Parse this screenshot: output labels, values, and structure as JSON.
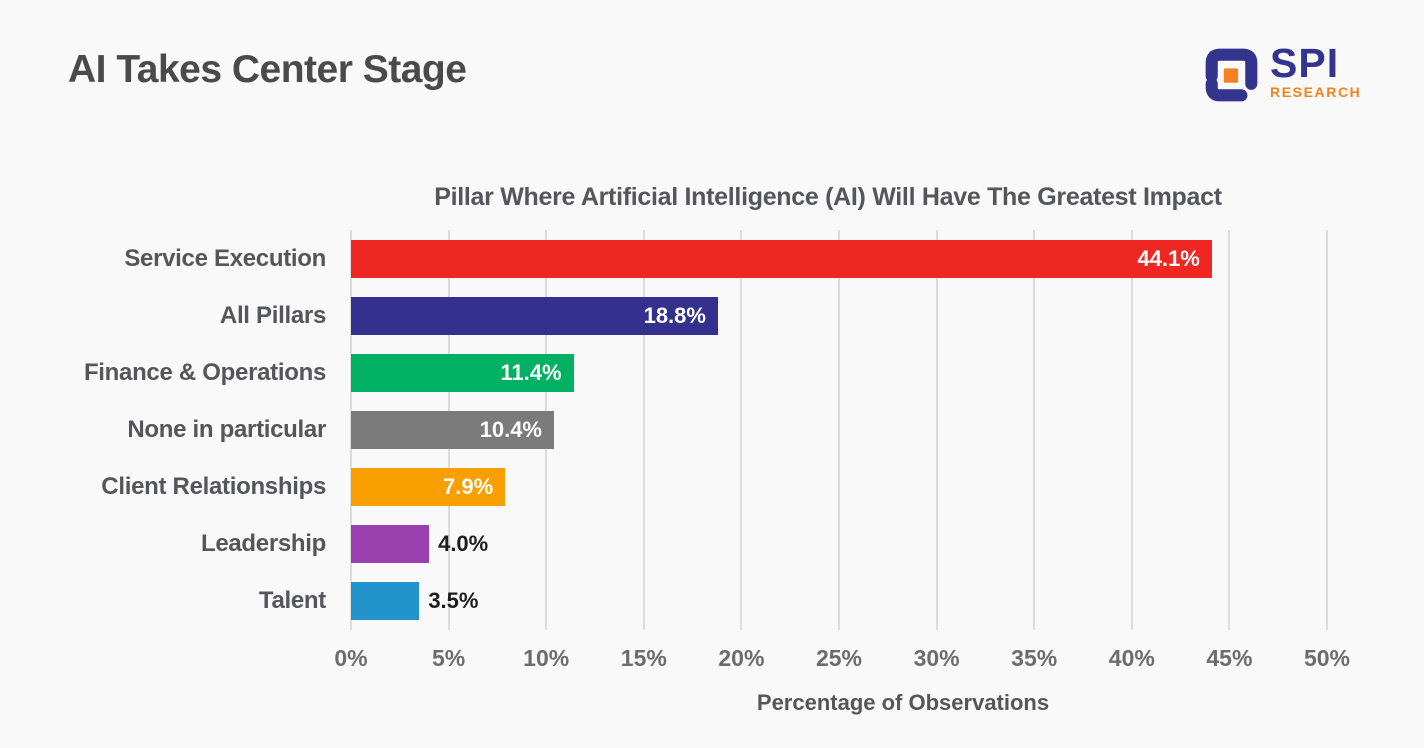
{
  "header": {
    "title": "AI Takes Center Stage"
  },
  "logo": {
    "brand": "SPI",
    "sub": "RESEARCH",
    "navy": "#32348e",
    "orange": "#f5821f"
  },
  "theme": {
    "background": "#f9f9f9",
    "grid_color": "#dcdcdc",
    "title_color": "#4a4a4a",
    "label_color": "#55565a",
    "tick_color": "#6c6c6c",
    "value_inside_color": "#ffffff",
    "value_outside_color": "#1d1d1d"
  },
  "chart_data": {
    "type": "bar",
    "orientation": "horizontal",
    "title": "Pillar Where Artificial Intelligence (AI) Will Have The Greatest Impact",
    "xlabel": "Percentage of Observations",
    "categories": [
      "Service Execution",
      "All Pillars",
      "Finance & Operations",
      "None in particular",
      "Client Relationships",
      "Leadership",
      "Talent"
    ],
    "values": [
      44.1,
      18.8,
      11.4,
      10.4,
      7.9,
      4.0,
      3.5
    ],
    "value_labels": [
      "44.1%",
      "18.8%",
      "11.4%",
      "10.4%",
      "7.9%",
      "4.0%",
      "3.5%"
    ],
    "bar_colors": [
      "#ee2722",
      "#34318e",
      "#00b163",
      "#7b7b7b",
      "#f9a000",
      "#9a3fae",
      "#2393cb"
    ],
    "label_placement": [
      "inside",
      "inside",
      "inside",
      "inside",
      "inside",
      "outside",
      "outside"
    ],
    "xlim": [
      0,
      50
    ],
    "xticks": [
      "0%",
      "5%",
      "10%",
      "15%",
      "20%",
      "25%",
      "30%",
      "35%",
      "40%",
      "45%",
      "50%"
    ],
    "grid": "vertical-only",
    "legend": "none"
  }
}
